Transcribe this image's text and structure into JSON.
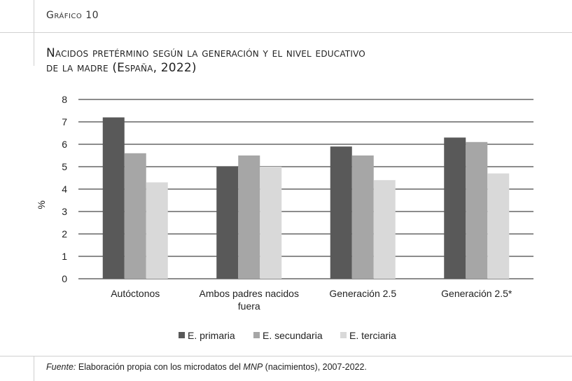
{
  "header": {
    "section_label": "Gráfico 10",
    "title_line1": "Nacidos pretérmino según la generación y el nivel educativo",
    "title_line2": "de la madre (España, 2022)"
  },
  "footer": {
    "source_prefix": "Fuente:",
    "source_text_1": " Elaboración propia con los microdatos del ",
    "source_italic": "MNP",
    "source_text_2": " (nacimientos), 2007-2022."
  },
  "chart_data": {
    "type": "bar",
    "ylabel": "%",
    "xlabel": "",
    "ylim": [
      0,
      8
    ],
    "yticks": [
      0,
      1,
      2,
      3,
      4,
      5,
      6,
      7,
      8
    ],
    "grid": true,
    "legend_position": "bottom",
    "categories": [
      [
        "Autóctonos"
      ],
      [
        "Ambos padres nacidos",
        "fuera"
      ],
      [
        "Generación 2.5"
      ],
      [
        "Generación 2.5*"
      ]
    ],
    "series": [
      {
        "name": "E. primaria",
        "color": "#595959",
        "values": [
          7.2,
          5.0,
          5.9,
          6.3
        ]
      },
      {
        "name": "E. secundaria",
        "color": "#a6a6a6",
        "values": [
          5.6,
          5.5,
          5.5,
          6.1
        ]
      },
      {
        "name": "E. terciaria",
        "color": "#d9d9d9",
        "values": [
          4.3,
          5.0,
          4.4,
          4.7
        ]
      }
    ]
  }
}
